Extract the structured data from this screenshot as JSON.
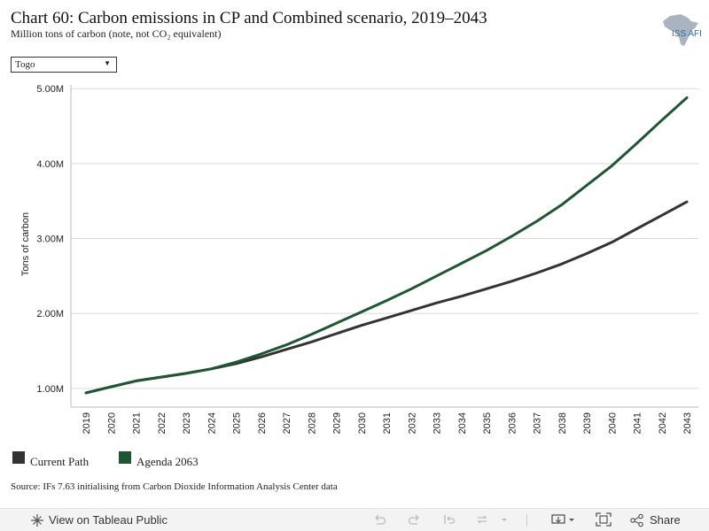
{
  "header": {
    "title": "Chart 60: Carbon emissions in CP and Combined scenario, 2019–2043",
    "subtitle": "Million tons of carbon (note, not CO₂ equivalent)",
    "logo_text": "ISS AFI"
  },
  "filter": {
    "selected": "Togo"
  },
  "colors": {
    "current_path": "#333333",
    "agenda_2063": "#1e5631",
    "grid": "#d9d9d9"
  },
  "chart_data": {
    "type": "line",
    "title": "Chart 60: Carbon emissions in CP and Combined scenario, 2019–2043",
    "xlabel": "",
    "ylabel": "Tons of carbon",
    "ylim": [
      0.75,
      5.05
    ],
    "y_ticks": [
      1.0,
      2.0,
      3.0,
      4.0,
      5.0
    ],
    "y_tick_labels": [
      "1.00M",
      "2.00M",
      "3.00M",
      "4.00M",
      "5.00M"
    ],
    "x": [
      "2019",
      "2020",
      "2021",
      "2022",
      "2023",
      "2024",
      "2025",
      "2026",
      "2027",
      "2028",
      "2029",
      "2030",
      "2031",
      "2032",
      "2033",
      "2034",
      "2035",
      "2036",
      "2037",
      "2038",
      "2039",
      "2040",
      "2041",
      "2042",
      "2043"
    ],
    "series": [
      {
        "name": "Current Path",
        "color": "#333333",
        "values": [
          0.94,
          1.02,
          1.1,
          1.15,
          1.2,
          1.26,
          1.33,
          1.42,
          1.52,
          1.62,
          1.73,
          1.84,
          1.94,
          2.04,
          2.14,
          2.23,
          2.33,
          2.43,
          2.54,
          2.66,
          2.8,
          2.95,
          3.13,
          3.31,
          3.49
        ]
      },
      {
        "name": "Agenda 2063",
        "color": "#1e5631",
        "values": [
          0.94,
          1.02,
          1.1,
          1.15,
          1.2,
          1.26,
          1.35,
          1.46,
          1.58,
          1.72,
          1.87,
          2.02,
          2.17,
          2.33,
          2.5,
          2.67,
          2.84,
          3.03,
          3.23,
          3.45,
          3.71,
          3.97,
          4.27,
          4.58,
          4.88
        ]
      }
    ],
    "legend": [
      "Current Path",
      "Agenda 2063"
    ],
    "legend_position": "bottom-left"
  },
  "source": "Source: IFs 7.63 initialising from Carbon Dioxide Information Analysis Center data",
  "toolbar": {
    "view_label": "View on Tableau Public",
    "share_label": "Share"
  }
}
